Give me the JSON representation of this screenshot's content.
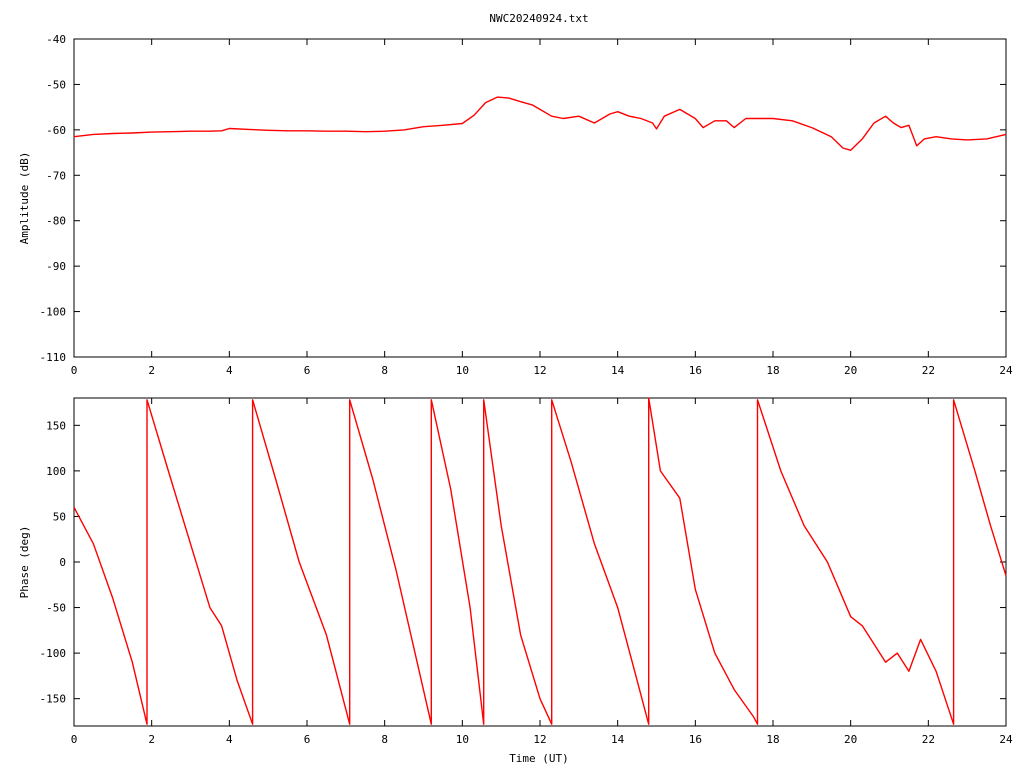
{
  "title": "NWC20240924.txt",
  "colors": {
    "series": "#ff0000",
    "axis": "#000000",
    "background": "#ffffff"
  },
  "chart_data": [
    {
      "type": "line",
      "title": "NWC20240924.txt",
      "xlabel": "",
      "ylabel": "Amplitude (dB)",
      "xlim": [
        0,
        24
      ],
      "ylim": [
        -110,
        -40
      ],
      "xticks": [
        "0",
        "2",
        "4",
        "6",
        "8",
        "10",
        "12",
        "14",
        "16",
        "18",
        "20",
        "22",
        "24"
      ],
      "yticks": [
        "-40",
        "-50",
        "-60",
        "-70",
        "-80",
        "-90",
        "-100",
        "-110"
      ],
      "grid": false,
      "series": [
        {
          "x": [
            0,
            0.5,
            1,
            1.5,
            2,
            2.5,
            3,
            3.5,
            3.8,
            4,
            4.5,
            5,
            5.5,
            6,
            6.5,
            7,
            7.5,
            8,
            8.5,
            9,
            9.5,
            10,
            10.3,
            10.6,
            10.9,
            11.2,
            11.5,
            11.8,
            12,
            12.3,
            12.6,
            13,
            13.4,
            13.8,
            14,
            14.3,
            14.6,
            14.9,
            15.0,
            15.2,
            15.6,
            16,
            16.2,
            16.5,
            16.8,
            17,
            17.3,
            17.6,
            18,
            18.5,
            19,
            19.5,
            19.8,
            20,
            20.3,
            20.6,
            20.9,
            21.1,
            21.3,
            21.5,
            21.7,
            21.9,
            22.2,
            22.6,
            23,
            23.5,
            24
          ],
          "values": [
            -61.5,
            -61,
            -60.8,
            -60.7,
            -60.5,
            -60.4,
            -60.3,
            -60.3,
            -60.2,
            -59.7,
            -59.9,
            -60.1,
            -60.2,
            -60.2,
            -60.3,
            -60.3,
            -60.4,
            -60.3,
            -60.0,
            -59.3,
            -59.0,
            -58.6,
            -56.8,
            -54,
            -52.8,
            -53,
            -53.8,
            -54.5,
            -55.5,
            -57,
            -57.5,
            -57,
            -58.5,
            -56.5,
            -56,
            -57,
            -57.5,
            -58.5,
            -59.8,
            -57,
            -55.5,
            -57.5,
            -59.5,
            -58,
            -58,
            -59.5,
            -57.5,
            -57.5,
            -57.5,
            -58,
            -59.5,
            -61.5,
            -64,
            -64.5,
            -62,
            -58.5,
            -57,
            -58.5,
            -59.5,
            -59,
            -63.5,
            -62,
            -61.5,
            -62,
            -62.2,
            -62,
            -61
          ]
        }
      ]
    },
    {
      "type": "line",
      "title": "",
      "xlabel": "Time (UT)",
      "ylabel": "Phase (deg)",
      "xlim": [
        0,
        24
      ],
      "ylim": [
        -180,
        180
      ],
      "xticks": [
        "0",
        "2",
        "4",
        "6",
        "8",
        "10",
        "12",
        "14",
        "16",
        "18",
        "20",
        "22",
        "24"
      ],
      "yticks": [
        "150",
        "100",
        "50",
        "0",
        "-50",
        "-100",
        "-150"
      ],
      "grid": false,
      "series": [
        {
          "x": [
            0,
            0.5,
            1,
            1.5,
            1.88,
            1.88,
            2.5,
            3,
            3.5,
            3.8,
            4.2,
            4.6,
            4.6,
            5.2,
            5.8,
            6.5,
            7.1,
            7.1,
            7.7,
            8.3,
            9.2,
            9.2,
            9.7,
            10.2,
            10.55,
            10.55,
            11,
            11.5,
            12.0,
            12.3,
            12.3,
            12.8,
            13.4,
            14,
            14.5,
            14.8,
            14.8,
            15.1,
            15.6,
            16,
            16.5,
            17,
            17.5,
            17.6,
            17.6,
            18.2,
            18.8,
            19.4,
            20,
            20.3,
            20.6,
            20.9,
            21.2,
            21.5,
            21.8,
            22.2,
            22.65,
            22.65,
            23.2,
            23.6,
            24
          ],
          "values": [
            60,
            20,
            -40,
            -110,
            -178,
            178,
            90,
            20,
            -50,
            -70,
            -130,
            -178,
            178,
            90,
            0,
            -80,
            -178,
            178,
            90,
            -10,
            -178,
            178,
            80,
            -50,
            -178,
            178,
            40,
            -80,
            -150,
            -178,
            178,
            110,
            20,
            -50,
            -130,
            -178,
            180,
            100,
            70,
            -30,
            -100,
            -140,
            -170,
            -178,
            178,
            100,
            40,
            0,
            -60,
            -70,
            -90,
            -110,
            -100,
            -120,
            -85,
            -120,
            -178,
            178,
            100,
            40,
            -15
          ]
        }
      ]
    }
  ]
}
